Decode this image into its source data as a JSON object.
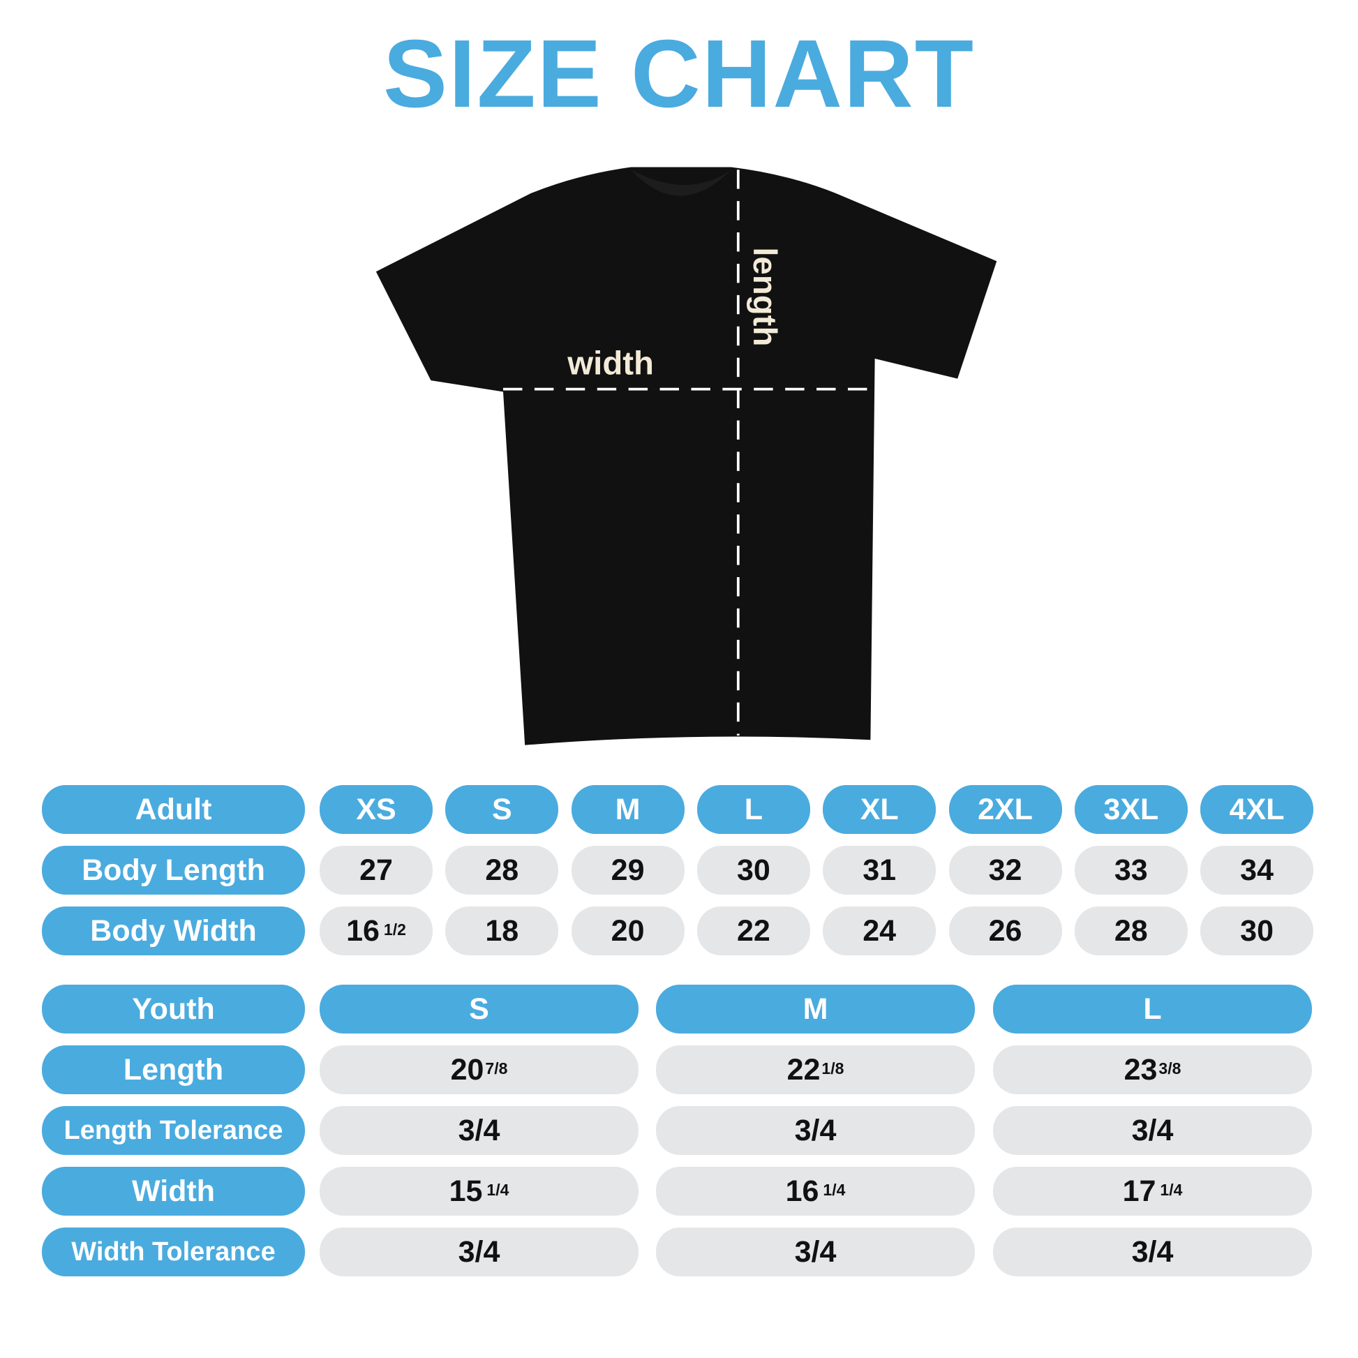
{
  "title": "SIZE CHART",
  "shirt": {
    "width_label": "width",
    "length_label": "length",
    "color": "#111111",
    "label_color": "#f3ead8"
  },
  "colors": {
    "accent": "#4aabdf",
    "cell": "#e5e6e8"
  },
  "chart_data": [
    {
      "type": "table",
      "header": "Adult",
      "columns": [
        "XS",
        "S",
        "M",
        "L",
        "XL",
        "2XL",
        "3XL",
        "4XL"
      ],
      "rows": [
        {
          "label": "Body Length",
          "values": [
            {
              "whole": "27",
              "frac": ""
            },
            {
              "whole": "28",
              "frac": ""
            },
            {
              "whole": "29",
              "frac": ""
            },
            {
              "whole": "30",
              "frac": ""
            },
            {
              "whole": "31",
              "frac": ""
            },
            {
              "whole": "32",
              "frac": ""
            },
            {
              "whole": "33",
              "frac": ""
            },
            {
              "whole": "34",
              "frac": ""
            }
          ]
        },
        {
          "label": "Body Width",
          "values": [
            {
              "whole": "16",
              "frac": "1/2"
            },
            {
              "whole": "18",
              "frac": ""
            },
            {
              "whole": "20",
              "frac": ""
            },
            {
              "whole": "22",
              "frac": ""
            },
            {
              "whole": "24",
              "frac": ""
            },
            {
              "whole": "26",
              "frac": ""
            },
            {
              "whole": "28",
              "frac": ""
            },
            {
              "whole": "30",
              "frac": ""
            }
          ]
        }
      ]
    },
    {
      "type": "table",
      "header": "Youth",
      "columns": [
        "S",
        "M",
        "L"
      ],
      "rows": [
        {
          "label": "Length",
          "values": [
            {
              "whole": "20",
              "frac": "7/8"
            },
            {
              "whole": "22",
              "frac": "1/8"
            },
            {
              "whole": "23",
              "frac": "3/8"
            }
          ]
        },
        {
          "label": "Length Tolerance",
          "values": [
            {
              "whole": "3/4",
              "frac": ""
            },
            {
              "whole": "3/4",
              "frac": ""
            },
            {
              "whole": "3/4",
              "frac": ""
            }
          ]
        },
        {
          "label": "Width",
          "values": [
            {
              "whole": "15",
              "frac": "1/4"
            },
            {
              "whole": "16",
              "frac": "1/4"
            },
            {
              "whole": "17",
              "frac": "1/4"
            }
          ]
        },
        {
          "label": "Width Tolerance",
          "values": [
            {
              "whole": "3/4",
              "frac": ""
            },
            {
              "whole": "3/4",
              "frac": ""
            },
            {
              "whole": "3/4",
              "frac": ""
            }
          ]
        }
      ]
    }
  ]
}
